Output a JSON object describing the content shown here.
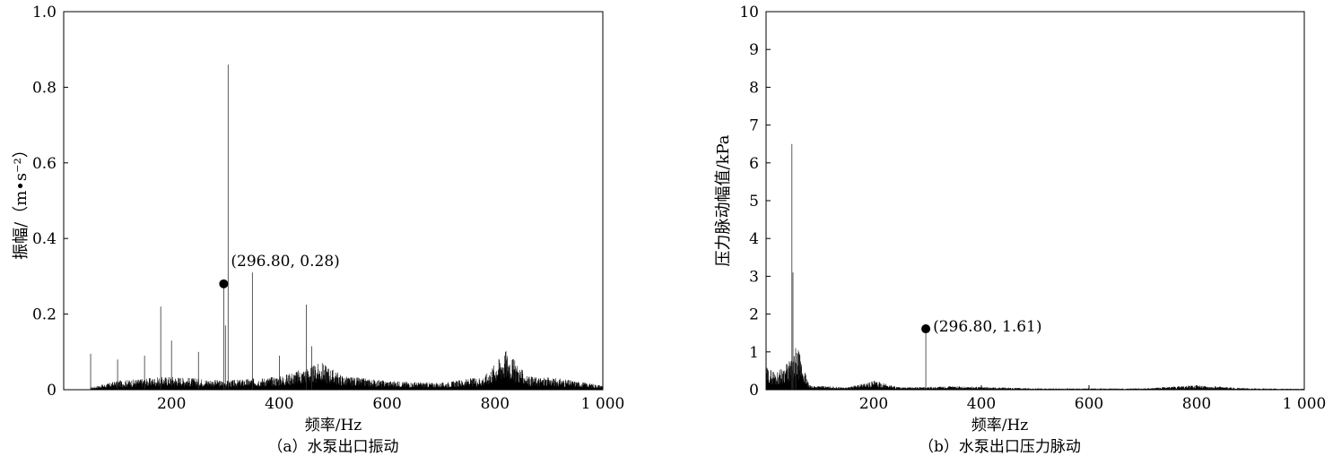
{
  "chart_data": [
    {
      "type": "line",
      "caption": "（a）水泵出口振动",
      "xlabel": "频率/Hz",
      "ylabel": "振幅/（m•s⁻²）",
      "xlim": [
        0,
        1000
      ],
      "ylim": [
        0,
        1.0
      ],
      "xticks": [
        200,
        400,
        600,
        800,
        1000
      ],
      "xtick_labels": [
        "200",
        "400",
        "600",
        "800",
        "1 000"
      ],
      "yticks": [
        0,
        0.2,
        0.4,
        0.6,
        0.8,
        1.0
      ],
      "ytick_labels": [
        "0",
        "0.2",
        "0.4",
        "0.6",
        "0.8",
        "1.0"
      ],
      "annotation": {
        "x": 296.8,
        "y": 0.28,
        "label": "(296.80, 0.28)"
      },
      "peaks": [
        {
          "x": 50,
          "y": 0.095
        },
        {
          "x": 100,
          "y": 0.08
        },
        {
          "x": 150,
          "y": 0.09
        },
        {
          "x": 180,
          "y": 0.22
        },
        {
          "x": 200,
          "y": 0.13
        },
        {
          "x": 250,
          "y": 0.1
        },
        {
          "x": 296.8,
          "y": 0.28
        },
        {
          "x": 300,
          "y": 0.17
        },
        {
          "x": 305,
          "y": 0.86
        },
        {
          "x": 350,
          "y": 0.31
        },
        {
          "x": 400,
          "y": 0.09
        },
        {
          "x": 450,
          "y": 0.225
        },
        {
          "x": 460,
          "y": 0.115
        }
      ],
      "envelope": [
        {
          "x": 50,
          "y": 0.005
        },
        {
          "x": 100,
          "y": 0.02
        },
        {
          "x": 200,
          "y": 0.03
        },
        {
          "x": 300,
          "y": 0.02
        },
        {
          "x": 400,
          "y": 0.03
        },
        {
          "x": 480,
          "y": 0.06
        },
        {
          "x": 520,
          "y": 0.03
        },
        {
          "x": 600,
          "y": 0.02
        },
        {
          "x": 700,
          "y": 0.015
        },
        {
          "x": 780,
          "y": 0.03
        },
        {
          "x": 820,
          "y": 0.09
        },
        {
          "x": 860,
          "y": 0.03
        },
        {
          "x": 920,
          "y": 0.025
        },
        {
          "x": 1000,
          "y": 0.01
        }
      ]
    },
    {
      "type": "line",
      "caption": "（b）水泵出口压力脉动",
      "xlabel": "频率/Hz",
      "ylabel": "压力脉动幅值/kPa",
      "xlim": [
        0,
        1000
      ],
      "ylim": [
        0,
        10
      ],
      "xticks": [
        200,
        400,
        600,
        800,
        1000
      ],
      "xtick_labels": [
        "200",
        "400",
        "600",
        "800",
        "1 000"
      ],
      "yticks": [
        0,
        1,
        2,
        3,
        4,
        5,
        6,
        7,
        8,
        9,
        10
      ],
      "ytick_labels": [
        "0",
        "1",
        "2",
        "3",
        "4",
        "5",
        "6",
        "7",
        "8",
        "9",
        "10"
      ],
      "annotation": {
        "x": 296.8,
        "y": 1.61,
        "label": "(296.80, 1.61)"
      },
      "peaks": [
        {
          "x": 48,
          "y": 6.5
        },
        {
          "x": 50,
          "y": 3.1
        },
        {
          "x": 55,
          "y": 1.1
        },
        {
          "x": 296.8,
          "y": 1.61
        }
      ],
      "envelope": [
        {
          "x": 0,
          "y": 0.5
        },
        {
          "x": 20,
          "y": 0.4
        },
        {
          "x": 40,
          "y": 0.6
        },
        {
          "x": 60,
          "y": 0.9
        },
        {
          "x": 80,
          "y": 0.1
        },
        {
          "x": 150,
          "y": 0.05
        },
        {
          "x": 200,
          "y": 0.2
        },
        {
          "x": 250,
          "y": 0.05
        },
        {
          "x": 350,
          "y": 0.08
        },
        {
          "x": 500,
          "y": 0.03
        },
        {
          "x": 700,
          "y": 0.03
        },
        {
          "x": 800,
          "y": 0.1
        },
        {
          "x": 900,
          "y": 0.03
        },
        {
          "x": 1000,
          "y": 0.02
        }
      ]
    }
  ]
}
